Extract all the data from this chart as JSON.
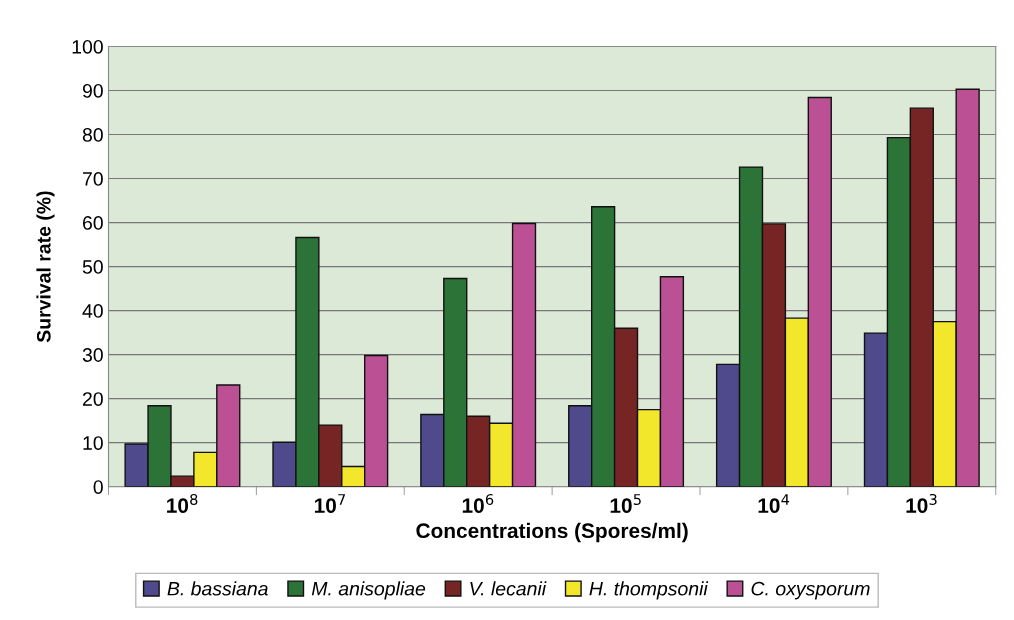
{
  "chart_data": {
    "type": "bar",
    "xlabel": "Concentrations (Spores/ml)",
    "ylabel": "Survival rate (%)",
    "categories": [
      "10$^{8}$",
      "10$^{7}$",
      "10$^{6}$",
      "10$^{5}$",
      "10$^{4}$",
      "10$^{3}$"
    ],
    "series": [
      {
        "name": "B. bassiana",
        "color": "#4e4a8c",
        "values": [
          9.7,
          10.1,
          16.4,
          18.4,
          27.8,
          34.9
        ]
      },
      {
        "name": "M. anisopliae",
        "color": "#2b7337",
        "values": [
          18.4,
          56.6,
          47.3,
          63.6,
          72.6,
          79.3
        ]
      },
      {
        "name": "V. lecanii",
        "color": "#772524",
        "values": [
          2.4,
          14.0,
          16.0,
          36.0,
          59.7,
          86.0
        ]
      },
      {
        "name": "H. thompsonii",
        "color": "#f2e72a",
        "values": [
          7.8,
          4.6,
          14.4,
          17.5,
          38.3,
          37.5
        ]
      },
      {
        "name": "C. oxysporum",
        "color": "#bb5094",
        "values": [
          23.1,
          29.8,
          59.8,
          47.7,
          88.4,
          90.3
        ]
      }
    ],
    "ylim": [
      0,
      100
    ],
    "yticks": [
      0,
      10,
      20,
      30,
      40,
      50,
      60,
      70,
      80,
      90,
      100
    ],
    "grid": "y",
    "legend": "bottom"
  }
}
